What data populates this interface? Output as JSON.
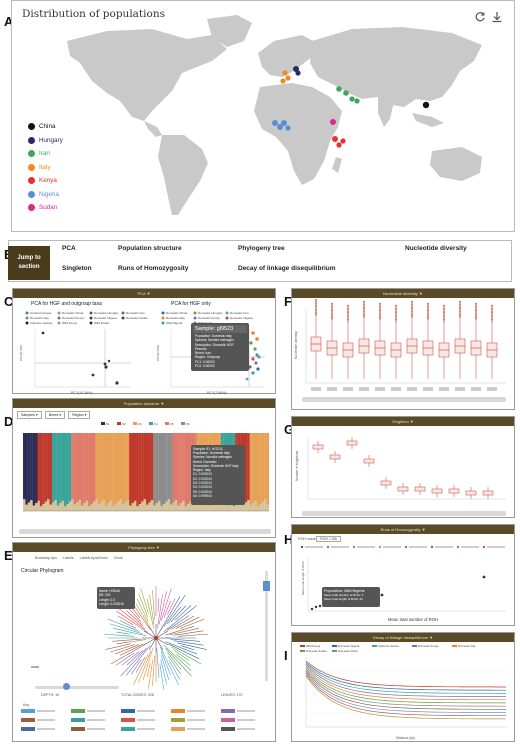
{
  "panel_labels": {
    "A": "A",
    "B": "B",
    "C": "C",
    "D": "D",
    "E": "E",
    "F": "F",
    "G": "G",
    "H": "H",
    "I": "I"
  },
  "map": {
    "title": "Distribution of populations",
    "icons": {
      "refresh": "refresh-icon",
      "download": "download-icon"
    },
    "legend": [
      {
        "name": "China",
        "color": "#111111"
      },
      {
        "name": "Hungary",
        "color": "#242a6b"
      },
      {
        "name": "Iran",
        "color": "#3aaa5a"
      },
      {
        "name": "Italy",
        "color": "#f08a24"
      },
      {
        "name": "Kenya",
        "color": "#e8302e"
      },
      {
        "name": "Nigeria",
        "color": "#5b8ed6"
      },
      {
        "name": "Sudan",
        "color": "#e0268c"
      }
    ]
  },
  "nav": {
    "jump_label_1": "Jump to",
    "jump_label_2": "section",
    "links": [
      "PCA",
      "Population structure",
      "Phylogeny tree",
      "Nucleotide diversity",
      "Singleton",
      "Runs of Homozygosity",
      "Decay of linkage disequilibrium"
    ]
  },
  "pca": {
    "header": "PCA ▼",
    "left_title": "PCA for HGF and outgroup taxa",
    "right_title": "PCA for HGF only",
    "left_xlabel": "PC1(14.36%)",
    "right_xlabel": "PC1(7.88%)",
    "tooltip_title": "Sample: gl9523",
    "tooltip_lines": [
      "Population: Domestic Italy",
      "Species: Numida meleagris",
      "Description: Domestic HGF Pescina",
      "Breed: Iran",
      "Region: Outgroup",
      "PC1: 0.06903",
      "PC2: 0.00093"
    ]
  },
  "structure": {
    "header": "Population structure ▼",
    "dropdowns": [
      "Samples ▾",
      "Breed ▾",
      "Region ▾"
    ],
    "tooltip_title": "Sample ID: HG211",
    "tooltip_lines": [
      "Population: Domestic Italy",
      "Species: Numida meleagris",
      "Breed: Domestic",
      "Description: Domestic HGF Italy",
      "Region: Italy",
      "K1: 0.000010",
      "K2: 0.000010",
      "K3: 0.000010",
      "K4: 0.000010",
      "K5: 0.000010",
      "K6: 0.999910"
    ]
  },
  "phylo": {
    "header": "Phylogeny tree ▼",
    "opt_1": "Bootstrap tips",
    "opt_2": "Labels",
    "opt_3": "Labels tip/all links",
    "opt_4": "Circle",
    "title": "Circular Phylogram",
    "tooltip_lines": [
      "Name: HGN46",
      "BS: 100",
      "Length: 0.3",
      "Length: 0.003016"
    ],
    "footer_left": "DEPTH: 10",
    "footer_mid": "TOTAL NODES: 326",
    "footer_right": "LEAVES: 137",
    "key_label": "Key"
  },
  "nucleotide": {
    "header": "Nucleotide diversity ▼",
    "ylabel": "Nucleotide diversity"
  },
  "singleton": {
    "header": "Singleton ▼",
    "ylabel": "Number of singletons"
  },
  "roh": {
    "header": "Runs of Homozygosity ▼",
    "select_label": "ROH value",
    "select_value": "ROH 1 Mb",
    "xlabel": "Mean total number of ROH",
    "ylabel": "Mean total length of ROH",
    "tooltip_title": "Population: Wild Nigeria",
    "tooltip_lines": [
      "Mean total number of ROH: 4",
      "Mean total length of ROH: 21"
    ]
  },
  "ld": {
    "header": "Decay of linkage disequilibrium ▼",
    "xlabel": "Distance (bp)"
  }
}
